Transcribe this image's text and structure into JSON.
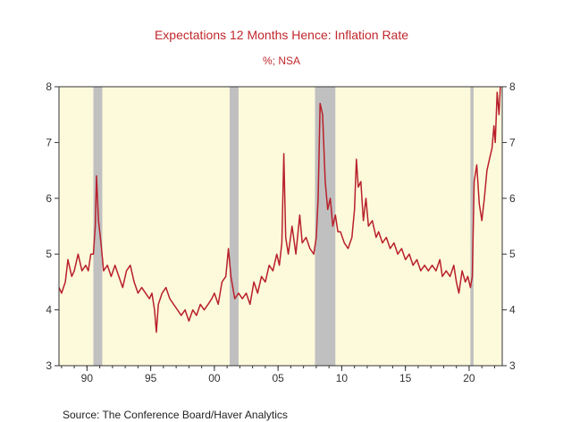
{
  "chart_data": {
    "type": "line",
    "title": "Expectations 12 Months Hence: Inflation Rate",
    "subtitle": "%; NSA",
    "source": "Source:  The Conference Board/Haver Analytics",
    "ylim": [
      3,
      8
    ],
    "y_ticks": [
      3,
      4,
      5,
      6,
      7,
      8
    ],
    "xlim": [
      1987.8,
      2022.6
    ],
    "x_ticks": [
      {
        "value": 1990,
        "label": "90"
      },
      {
        "value": 1995,
        "label": "95"
      },
      {
        "value": 2000,
        "label": "00"
      },
      {
        "value": 2005,
        "label": "05"
      },
      {
        "value": 2010,
        "label": "10"
      },
      {
        "value": 2015,
        "label": "15"
      },
      {
        "value": 2020,
        "label": "20"
      }
    ],
    "recessions": [
      [
        1990.5,
        1991.2
      ],
      [
        2001.2,
        2001.9
      ],
      [
        2007.9,
        2009.5
      ],
      [
        2020.1,
        2020.35
      ]
    ],
    "colors": {
      "line": "#b8202a",
      "plot_bg": "#fdfadc",
      "recession": "#c0c0c0",
      "title": "#c0282d"
    },
    "series": [
      {
        "name": "Expectations 12 Months Hence: Inflation Rate",
        "points": [
          [
            1987.8,
            4.4
          ],
          [
            1988.0,
            4.3
          ],
          [
            1988.3,
            4.5
          ],
          [
            1988.5,
            4.9
          ],
          [
            1988.8,
            4.6
          ],
          [
            1989.0,
            4.7
          ],
          [
            1989.3,
            5.0
          ],
          [
            1989.6,
            4.7
          ],
          [
            1989.9,
            4.8
          ],
          [
            1990.1,
            4.7
          ],
          [
            1990.3,
            5.0
          ],
          [
            1990.5,
            5.0
          ],
          [
            1990.65,
            5.5
          ],
          [
            1990.75,
            6.4
          ],
          [
            1990.9,
            5.6
          ],
          [
            1991.1,
            5.2
          ],
          [
            1991.3,
            4.7
          ],
          [
            1991.6,
            4.8
          ],
          [
            1991.9,
            4.6
          ],
          [
            1992.2,
            4.8
          ],
          [
            1992.5,
            4.6
          ],
          [
            1992.8,
            4.4
          ],
          [
            1993.1,
            4.7
          ],
          [
            1993.4,
            4.8
          ],
          [
            1993.7,
            4.5
          ],
          [
            1994.0,
            4.3
          ],
          [
            1994.3,
            4.4
          ],
          [
            1994.6,
            4.3
          ],
          [
            1994.9,
            4.2
          ],
          [
            1995.1,
            4.3
          ],
          [
            1995.3,
            4.0
          ],
          [
            1995.45,
            3.6
          ],
          [
            1995.6,
            4.1
          ],
          [
            1995.9,
            4.3
          ],
          [
            1996.2,
            4.4
          ],
          [
            1996.5,
            4.2
          ],
          [
            1996.8,
            4.1
          ],
          [
            1997.1,
            4.0
          ],
          [
            1997.4,
            3.9
          ],
          [
            1997.7,
            4.0
          ],
          [
            1998.0,
            3.8
          ],
          [
            1998.3,
            4.0
          ],
          [
            1998.6,
            3.9
          ],
          [
            1998.9,
            4.1
          ],
          [
            1999.2,
            4.0
          ],
          [
            1999.5,
            4.1
          ],
          [
            1999.8,
            4.2
          ],
          [
            2000.0,
            4.3
          ],
          [
            2000.3,
            4.1
          ],
          [
            2000.6,
            4.5
          ],
          [
            2000.9,
            4.6
          ],
          [
            2001.1,
            5.1
          ],
          [
            2001.3,
            4.6
          ],
          [
            2001.6,
            4.2
          ],
          [
            2001.9,
            4.3
          ],
          [
            2002.2,
            4.2
          ],
          [
            2002.5,
            4.3
          ],
          [
            2002.8,
            4.1
          ],
          [
            2003.1,
            4.5
          ],
          [
            2003.4,
            4.3
          ],
          [
            2003.7,
            4.6
          ],
          [
            2004.0,
            4.5
          ],
          [
            2004.3,
            4.8
          ],
          [
            2004.6,
            4.7
          ],
          [
            2004.9,
            5.0
          ],
          [
            2005.1,
            4.8
          ],
          [
            2005.3,
            5.2
          ],
          [
            2005.45,
            6.8
          ],
          [
            2005.6,
            5.3
          ],
          [
            2005.8,
            5.0
          ],
          [
            2006.1,
            5.5
          ],
          [
            2006.4,
            5.0
          ],
          [
            2006.7,
            5.7
          ],
          [
            2006.9,
            5.2
          ],
          [
            2007.2,
            5.3
          ],
          [
            2007.5,
            5.1
          ],
          [
            2007.8,
            5.0
          ],
          [
            2008.0,
            5.3
          ],
          [
            2008.15,
            6.0
          ],
          [
            2008.3,
            7.7
          ],
          [
            2008.5,
            7.5
          ],
          [
            2008.7,
            6.3
          ],
          [
            2008.9,
            5.8
          ],
          [
            2009.1,
            6.0
          ],
          [
            2009.3,
            5.5
          ],
          [
            2009.5,
            5.7
          ],
          [
            2009.7,
            5.4
          ],
          [
            2009.9,
            5.4
          ],
          [
            2010.2,
            5.2
          ],
          [
            2010.5,
            5.1
          ],
          [
            2010.8,
            5.3
          ],
          [
            2011.0,
            5.8
          ],
          [
            2011.15,
            6.7
          ],
          [
            2011.3,
            6.2
          ],
          [
            2011.5,
            6.3
          ],
          [
            2011.7,
            5.6
          ],
          [
            2011.9,
            6.0
          ],
          [
            2012.1,
            5.5
          ],
          [
            2012.4,
            5.6
          ],
          [
            2012.7,
            5.3
          ],
          [
            2012.9,
            5.4
          ],
          [
            2013.2,
            5.2
          ],
          [
            2013.5,
            5.3
          ],
          [
            2013.8,
            5.1
          ],
          [
            2014.1,
            5.2
          ],
          [
            2014.4,
            5.0
          ],
          [
            2014.7,
            5.1
          ],
          [
            2015.0,
            4.9
          ],
          [
            2015.3,
            5.0
          ],
          [
            2015.6,
            4.8
          ],
          [
            2015.9,
            4.9
          ],
          [
            2016.2,
            4.7
          ],
          [
            2016.5,
            4.8
          ],
          [
            2016.8,
            4.7
          ],
          [
            2017.1,
            4.8
          ],
          [
            2017.4,
            4.7
          ],
          [
            2017.7,
            4.9
          ],
          [
            2017.9,
            4.6
          ],
          [
            2018.2,
            4.7
          ],
          [
            2018.5,
            4.6
          ],
          [
            2018.8,
            4.8
          ],
          [
            2019.0,
            4.5
          ],
          [
            2019.2,
            4.3
          ],
          [
            2019.45,
            4.7
          ],
          [
            2019.7,
            4.5
          ],
          [
            2019.9,
            4.6
          ],
          [
            2020.1,
            4.4
          ],
          [
            2020.25,
            4.6
          ],
          [
            2020.4,
            6.3
          ],
          [
            2020.6,
            6.6
          ],
          [
            2020.8,
            5.9
          ],
          [
            2021.0,
            5.6
          ],
          [
            2021.2,
            6.0
          ],
          [
            2021.4,
            6.5
          ],
          [
            2021.6,
            6.7
          ],
          [
            2021.8,
            6.9
          ],
          [
            2021.95,
            7.3
          ],
          [
            2022.05,
            7.0
          ],
          [
            2022.2,
            7.9
          ],
          [
            2022.35,
            7.5
          ],
          [
            2022.45,
            8.0
          ]
        ]
      }
    ]
  }
}
